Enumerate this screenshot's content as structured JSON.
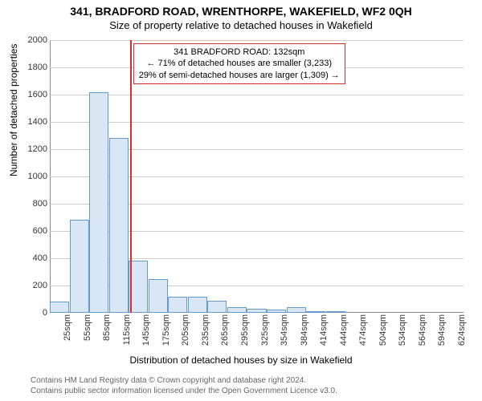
{
  "header": {
    "address": "341, BRADFORD ROAD, WRENTHORPE, WAKEFIELD, WF2 0QH",
    "subtitle": "Size of property relative to detached houses in Wakefield"
  },
  "annotation": {
    "line1": "341 BRADFORD ROAD: 132sqm",
    "line2": "← 71% of detached houses are smaller (3,233)",
    "line3": "29% of semi-detached houses are larger (1,309) →",
    "box_border_color": "#d62e2e",
    "marker_x_value": 132
  },
  "chart": {
    "type": "histogram",
    "categories": [
      "25sqm",
      "55sqm",
      "85sqm",
      "115sqm",
      "145sqm",
      "175sqm",
      "205sqm",
      "235sqm",
      "265sqm",
      "295sqm",
      "325sqm",
      "354sqm",
      "384sqm",
      "414sqm",
      "444sqm",
      "474sqm",
      "504sqm",
      "534sqm",
      "564sqm",
      "594sqm",
      "624sqm"
    ],
    "values": [
      80,
      680,
      1620,
      1280,
      380,
      250,
      120,
      115,
      90,
      40,
      30,
      25,
      40,
      10,
      10,
      5,
      5,
      0,
      0,
      0,
      0
    ],
    "bar_fill": "#d9e6f5",
    "bar_border": "#6699cc",
    "ylim": [
      0,
      2000
    ],
    "ytick_step": 200,
    "yticks": [
      0,
      200,
      400,
      600,
      800,
      1000,
      1200,
      1400,
      1600,
      1800,
      2000
    ],
    "grid_color": "#cccccc",
    "background_color": "#ffffff",
    "ylabel": "Number of detached properties",
    "xlabel": "Distribution of detached houses by size in Wakefield",
    "ylabel_fontsize": 12,
    "xlabel_fontsize": 12,
    "tick_fontsize": 11,
    "bar_width_ratio": 0.98,
    "marker_color": "#d62e2e"
  },
  "footer": {
    "line1": "Contains HM Land Registry data © Crown copyright and database right 2024.",
    "line2": "Contains public sector information licensed under the Open Government Licence v3.0."
  }
}
